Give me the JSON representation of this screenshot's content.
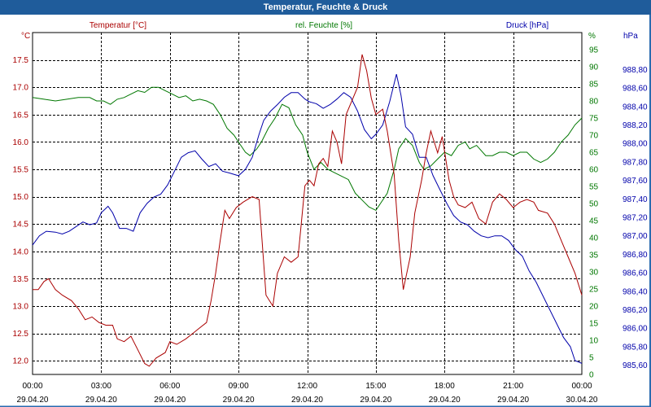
{
  "window": {
    "title": "Temperatur, Feuchte & Druck"
  },
  "colors": {
    "temperature": "#aa0000",
    "humidity": "#007700",
    "pressure": "#0000aa",
    "frame": "#2a6bb0",
    "grid": "#000000"
  },
  "chart_data": {
    "type": "line",
    "title": "Temperatur, Feuchte & Druck",
    "x_ticks": [
      {
        "time": "00:00",
        "date": "29.04.20"
      },
      {
        "time": "03:00",
        "date": "29.04.20"
      },
      {
        "time": "06:00",
        "date": "29.04.20"
      },
      {
        "time": "09:00",
        "date": "29.04.20"
      },
      {
        "time": "12:00",
        "date": "29.04.20"
      },
      {
        "time": "15:00",
        "date": "29.04.20"
      },
      {
        "time": "18:00",
        "date": "29.04.20"
      },
      {
        "time": "21:00",
        "date": "29.04.20"
      },
      {
        "time": "00:00",
        "date": "30.04.20"
      }
    ],
    "x_range_hours": [
      0,
      24
    ],
    "axes": {
      "temperature": {
        "label": "Temperatur [°C]",
        "unit": "°C",
        "min": 11.75,
        "max": 18.0,
        "ticks": [
          "12.0",
          "12.5",
          "13.0",
          "13.5",
          "14.0",
          "14.5",
          "15.0",
          "15.5",
          "16.0",
          "16.5",
          "17.0",
          "17.5"
        ]
      },
      "humidity": {
        "label": "rel. Feuchte [%]",
        "unit": "%",
        "min": 0,
        "max": 100,
        "ticks": [
          "0",
          "5",
          "10",
          "15",
          "20",
          "25",
          "30",
          "35",
          "40",
          "45",
          "50",
          "55",
          "60",
          "65",
          "70",
          "75",
          "80",
          "85",
          "90",
          "95"
        ]
      },
      "pressure": {
        "label": "Druck [hPa]",
        "unit": "hPa",
        "min": 985.5,
        "max": 989.2,
        "ticks": [
          "985,60",
          "985,80",
          "986,00",
          "986,20",
          "986,40",
          "986,60",
          "986,80",
          "987,00",
          "987,20",
          "987,40",
          "987,60",
          "987,80",
          "988,00",
          "988,20",
          "988,40",
          "988,60",
          "988,80"
        ]
      }
    },
    "series": [
      {
        "name": "Temperatur",
        "axis": "temperature",
        "color": "#aa0000",
        "points": [
          [
            0,
            13.3
          ],
          [
            0.25,
            13.3
          ],
          [
            0.5,
            13.45
          ],
          [
            0.7,
            13.5
          ],
          [
            1.0,
            13.3
          ],
          [
            1.3,
            13.2
          ],
          [
            1.7,
            13.1
          ],
          [
            2.0,
            12.95
          ],
          [
            2.3,
            12.75
          ],
          [
            2.6,
            12.8
          ],
          [
            2.9,
            12.7
          ],
          [
            3.2,
            12.65
          ],
          [
            3.5,
            12.65
          ],
          [
            3.7,
            12.4
          ],
          [
            4.0,
            12.35
          ],
          [
            4.3,
            12.45
          ],
          [
            4.6,
            12.2
          ],
          [
            4.9,
            11.95
          ],
          [
            5.1,
            11.9
          ],
          [
            5.4,
            12.05
          ],
          [
            5.8,
            12.15
          ],
          [
            6.0,
            12.35
          ],
          [
            6.3,
            12.3
          ],
          [
            6.7,
            12.4
          ],
          [
            7.0,
            12.5
          ],
          [
            7.3,
            12.6
          ],
          [
            7.6,
            12.7
          ],
          [
            7.8,
            13.1
          ],
          [
            8.0,
            13.6
          ],
          [
            8.2,
            14.2
          ],
          [
            8.4,
            14.75
          ],
          [
            8.6,
            14.6
          ],
          [
            8.9,
            14.8
          ],
          [
            9.2,
            14.9
          ],
          [
            9.6,
            15.0
          ],
          [
            9.9,
            14.95
          ],
          [
            10.2,
            13.2
          ],
          [
            10.5,
            13.0
          ],
          [
            10.7,
            13.6
          ],
          [
            11.0,
            13.9
          ],
          [
            11.3,
            13.8
          ],
          [
            11.6,
            13.9
          ],
          [
            11.9,
            15.2
          ],
          [
            12.1,
            15.3
          ],
          [
            12.3,
            15.2
          ],
          [
            12.5,
            15.6
          ],
          [
            12.7,
            15.7
          ],
          [
            12.9,
            15.55
          ],
          [
            13.1,
            16.2
          ],
          [
            13.3,
            16.0
          ],
          [
            13.5,
            15.6
          ],
          [
            13.7,
            16.5
          ],
          [
            14.0,
            16.8
          ],
          [
            14.2,
            17.0
          ],
          [
            14.4,
            17.6
          ],
          [
            14.6,
            17.3
          ],
          [
            14.8,
            16.8
          ],
          [
            15.0,
            16.5
          ],
          [
            15.3,
            16.6
          ],
          [
            15.5,
            16.2
          ],
          [
            15.8,
            15.4
          ],
          [
            16.0,
            14.2
          ],
          [
            16.2,
            13.3
          ],
          [
            16.5,
            13.9
          ],
          [
            16.7,
            14.7
          ],
          [
            17.0,
            15.3
          ],
          [
            17.2,
            15.8
          ],
          [
            17.4,
            16.2
          ],
          [
            17.7,
            15.8
          ],
          [
            17.9,
            16.1
          ],
          [
            18.2,
            15.3
          ],
          [
            18.4,
            15.0
          ],
          [
            18.6,
            14.85
          ],
          [
            18.9,
            14.8
          ],
          [
            19.2,
            14.9
          ],
          [
            19.5,
            14.6
          ],
          [
            19.8,
            14.5
          ],
          [
            20.1,
            14.9
          ],
          [
            20.4,
            15.05
          ],
          [
            20.7,
            14.95
          ],
          [
            21.0,
            14.8
          ],
          [
            21.3,
            14.9
          ],
          [
            21.6,
            14.95
          ],
          [
            21.9,
            14.9
          ],
          [
            22.1,
            14.75
          ],
          [
            22.5,
            14.7
          ],
          [
            22.8,
            14.5
          ],
          [
            23.1,
            14.2
          ],
          [
            23.4,
            13.9
          ],
          [
            23.7,
            13.6
          ],
          [
            24.0,
            13.2
          ]
        ]
      },
      {
        "name": "rel. Feuchte",
        "axis": "humidity",
        "color": "#007700",
        "points": [
          [
            0,
            81
          ],
          [
            0.5,
            80.5
          ],
          [
            1.0,
            80
          ],
          [
            1.5,
            80.5
          ],
          [
            2.0,
            81
          ],
          [
            2.5,
            81
          ],
          [
            2.8,
            80
          ],
          [
            3.1,
            80
          ],
          [
            3.4,
            79
          ],
          [
            3.7,
            80.5
          ],
          [
            4.0,
            81
          ],
          [
            4.3,
            82
          ],
          [
            4.6,
            83
          ],
          [
            4.9,
            82.5
          ],
          [
            5.2,
            84
          ],
          [
            5.5,
            84
          ],
          [
            5.8,
            83
          ],
          [
            6.1,
            82
          ],
          [
            6.4,
            81
          ],
          [
            6.7,
            81.5
          ],
          [
            7.0,
            80
          ],
          [
            7.3,
            80.5
          ],
          [
            7.6,
            80
          ],
          [
            7.9,
            79
          ],
          [
            8.2,
            76
          ],
          [
            8.5,
            72
          ],
          [
            8.8,
            70
          ],
          [
            9.1,
            67
          ],
          [
            9.3,
            65
          ],
          [
            9.5,
            64
          ],
          [
            9.8,
            66
          ],
          [
            10.0,
            68
          ],
          [
            10.3,
            72
          ],
          [
            10.6,
            75
          ],
          [
            10.9,
            79
          ],
          [
            11.2,
            78
          ],
          [
            11.5,
            73
          ],
          [
            11.8,
            70
          ],
          [
            12.0,
            65
          ],
          [
            12.3,
            60
          ],
          [
            12.6,
            62
          ],
          [
            12.9,
            60
          ],
          [
            13.2,
            59
          ],
          [
            13.5,
            58
          ],
          [
            13.8,
            57
          ],
          [
            14.1,
            53
          ],
          [
            14.4,
            51
          ],
          [
            14.7,
            49
          ],
          [
            15.0,
            48
          ],
          [
            15.2,
            50
          ],
          [
            15.5,
            53
          ],
          [
            15.8,
            60
          ],
          [
            16.0,
            66
          ],
          [
            16.3,
            69
          ],
          [
            16.6,
            67
          ],
          [
            16.9,
            62
          ],
          [
            17.1,
            60
          ],
          [
            17.4,
            61
          ],
          [
            17.7,
            63
          ],
          [
            18.0,
            65
          ],
          [
            18.3,
            64
          ],
          [
            18.6,
            67
          ],
          [
            18.9,
            68
          ],
          [
            19.1,
            66
          ],
          [
            19.4,
            67
          ],
          [
            19.8,
            64
          ],
          [
            20.1,
            64
          ],
          [
            20.4,
            65
          ],
          [
            20.7,
            65
          ],
          [
            21.0,
            64
          ],
          [
            21.3,
            65
          ],
          [
            21.6,
            65
          ],
          [
            21.9,
            63
          ],
          [
            22.2,
            62
          ],
          [
            22.5,
            63
          ],
          [
            22.8,
            65
          ],
          [
            23.1,
            68
          ],
          [
            23.4,
            70
          ],
          [
            23.7,
            73
          ],
          [
            24.0,
            75
          ]
        ]
      },
      {
        "name": "Druck",
        "axis": "pressure",
        "color": "#0000aa",
        "points": [
          [
            0,
            986.9
          ],
          [
            0.3,
            987.0
          ],
          [
            0.6,
            987.05
          ],
          [
            1.0,
            987.04
          ],
          [
            1.3,
            987.02
          ],
          [
            1.6,
            987.05
          ],
          [
            1.9,
            987.1
          ],
          [
            2.2,
            987.15
          ],
          [
            2.5,
            987.12
          ],
          [
            2.8,
            987.14
          ],
          [
            3.0,
            987.25
          ],
          [
            3.3,
            987.32
          ],
          [
            3.5,
            987.25
          ],
          [
            3.8,
            987.08
          ],
          [
            4.1,
            987.08
          ],
          [
            4.4,
            987.05
          ],
          [
            4.7,
            987.25
          ],
          [
            5.0,
            987.35
          ],
          [
            5.3,
            987.42
          ],
          [
            5.6,
            987.45
          ],
          [
            5.9,
            987.55
          ],
          [
            6.2,
            987.7
          ],
          [
            6.5,
            987.85
          ],
          [
            6.8,
            987.9
          ],
          [
            7.1,
            987.92
          ],
          [
            7.4,
            987.83
          ],
          [
            7.7,
            987.75
          ],
          [
            8.0,
            987.78
          ],
          [
            8.3,
            987.7
          ],
          [
            8.6,
            987.68
          ],
          [
            9.0,
            987.65
          ],
          [
            9.3,
            987.72
          ],
          [
            9.6,
            987.85
          ],
          [
            9.9,
            988.1
          ],
          [
            10.1,
            988.25
          ],
          [
            10.4,
            988.35
          ],
          [
            10.7,
            988.42
          ],
          [
            11.0,
            988.5
          ],
          [
            11.3,
            988.55
          ],
          [
            11.6,
            988.55
          ],
          [
            11.9,
            988.48
          ],
          [
            12.1,
            988.45
          ],
          [
            12.4,
            988.43
          ],
          [
            12.7,
            988.38
          ],
          [
            13.0,
            988.42
          ],
          [
            13.3,
            988.48
          ],
          [
            13.6,
            988.55
          ],
          [
            13.9,
            988.5
          ],
          [
            14.2,
            988.35
          ],
          [
            14.5,
            988.15
          ],
          [
            14.8,
            988.05
          ],
          [
            15.0,
            988.1
          ],
          [
            15.3,
            988.2
          ],
          [
            15.6,
            988.45
          ],
          [
            15.9,
            988.75
          ],
          [
            16.1,
            988.52
          ],
          [
            16.3,
            988.18
          ],
          [
            16.6,
            988.1
          ],
          [
            16.9,
            987.85
          ],
          [
            17.2,
            987.85
          ],
          [
            17.5,
            987.65
          ],
          [
            17.8,
            987.5
          ],
          [
            18.1,
            987.35
          ],
          [
            18.4,
            987.22
          ],
          [
            18.7,
            987.15
          ],
          [
            19.0,
            987.12
          ],
          [
            19.3,
            987.05
          ],
          [
            19.6,
            987.0
          ],
          [
            19.9,
            986.98
          ],
          [
            20.2,
            987.0
          ],
          [
            20.5,
            987.0
          ],
          [
            20.8,
            986.95
          ],
          [
            21.1,
            986.85
          ],
          [
            21.4,
            986.78
          ],
          [
            21.7,
            986.62
          ],
          [
            22.0,
            986.5
          ],
          [
            22.3,
            986.35
          ],
          [
            22.6,
            986.2
          ],
          [
            22.9,
            986.05
          ],
          [
            23.2,
            985.9
          ],
          [
            23.5,
            985.8
          ],
          [
            23.7,
            985.65
          ],
          [
            24.0,
            985.62
          ]
        ]
      }
    ]
  }
}
